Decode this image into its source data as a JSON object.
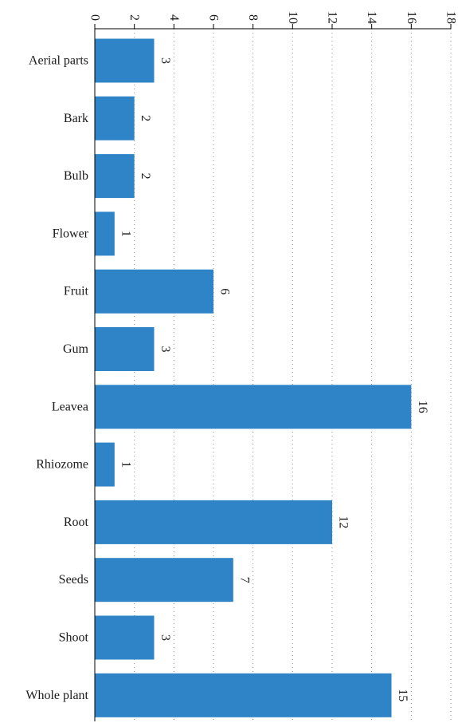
{
  "chart_data": {
    "type": "bar",
    "orientation": "horizontal",
    "categories": [
      "Aerial parts",
      "Bark",
      "Bulb",
      "Flower",
      "Fruit",
      "Gum",
      "Leavea",
      "Rhiozome",
      "Root",
      "Seeds",
      "Shoot",
      "Whole plant"
    ],
    "values": [
      3,
      2,
      2,
      1,
      6,
      3,
      16,
      1,
      12,
      7,
      3,
      15
    ],
    "value_labels": [
      "3",
      "2",
      "2",
      "1",
      "6",
      "3",
      "16",
      "1",
      "12",
      "7",
      "3",
      "15"
    ],
    "ticks": [
      0,
      2,
      4,
      6,
      8,
      10,
      12,
      14,
      16,
      18
    ],
    "tick_labels": [
      "0",
      "2",
      "4",
      "6",
      "8",
      "10",
      "12",
      "14",
      "16",
      "18"
    ],
    "xlim": [
      0,
      18
    ],
    "grid": true,
    "bar_color": "#2e84c6",
    "value_labels_rotated": true,
    "title": "",
    "xlabel": "",
    "ylabel": ""
  }
}
